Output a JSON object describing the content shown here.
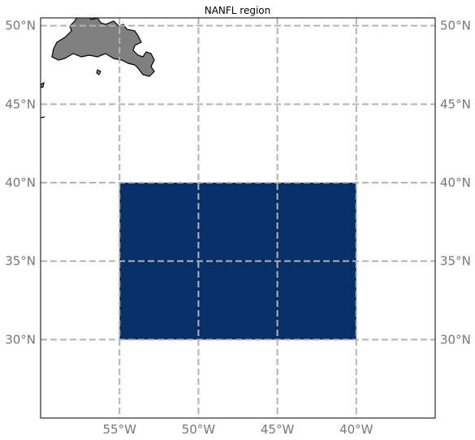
{
  "title": "NANFL region",
  "map": {
    "lon_range": [
      -60,
      -35
    ],
    "lat_range": [
      25,
      50.5
    ],
    "land_color": "#808080",
    "region_color": "#083068",
    "gridline_color": "#b3b3b3",
    "label_color": "#777777"
  },
  "region": {
    "lon_min": -55,
    "lon_max": -40,
    "lat_min": 30,
    "lat_max": 40
  },
  "lon_ticks": [
    {
      "value": -55,
      "label": "55°W"
    },
    {
      "value": -50,
      "label": "50°W"
    },
    {
      "value": -45,
      "label": "45°W"
    },
    {
      "value": -40,
      "label": "40°W"
    }
  ],
  "lat_ticks": [
    {
      "value": 30,
      "label": "30°N"
    },
    {
      "value": 35,
      "label": "35°N"
    },
    {
      "value": 40,
      "label": "40°N"
    },
    {
      "value": 45,
      "label": "45°N"
    },
    {
      "value": 50,
      "label": "50°N"
    }
  ]
}
